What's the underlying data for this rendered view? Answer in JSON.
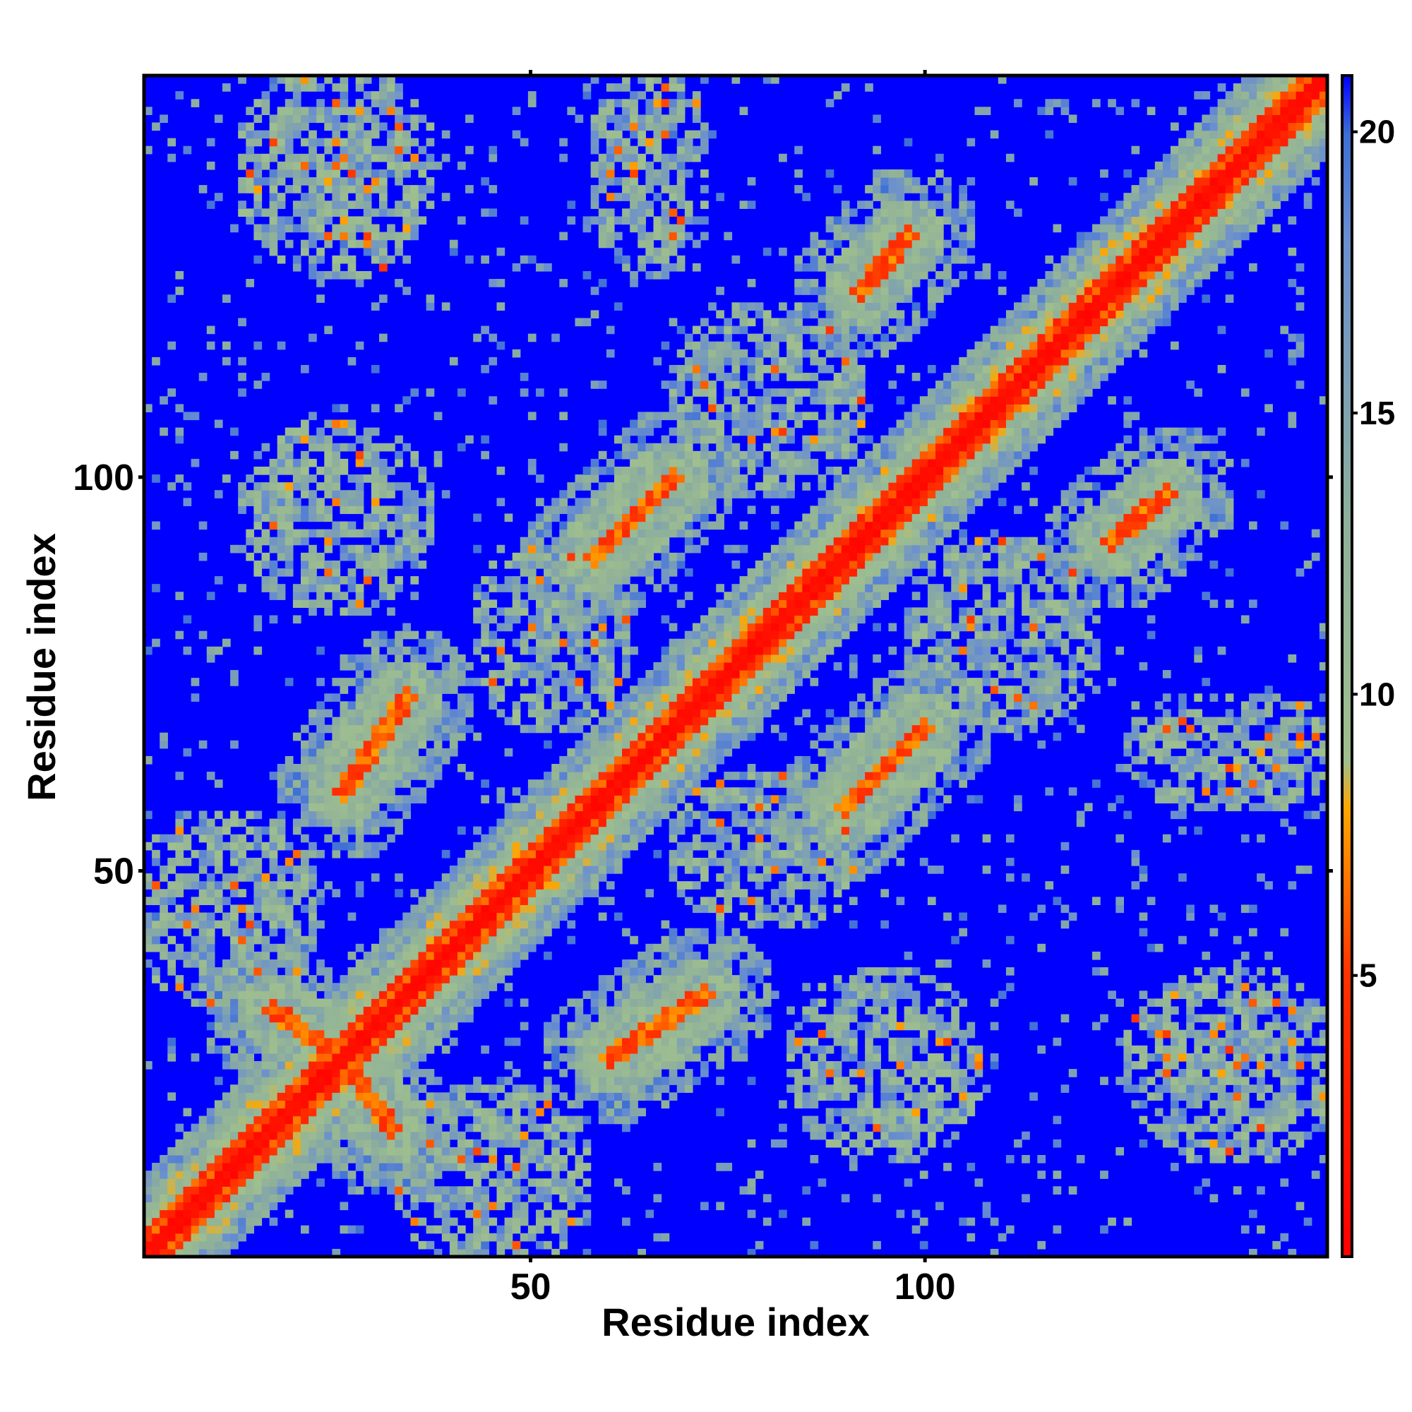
{
  "chart_data": {
    "type": "heatmap",
    "title": "",
    "xlabel": "Residue index",
    "ylabel": "Residue index",
    "n_residues": 151,
    "xlim": [
      1,
      151
    ],
    "ylim": [
      1,
      151
    ],
    "x_ticks": [
      50,
      100
    ],
    "y_ticks": [
      50,
      100
    ],
    "value_range": [
      0,
      21
    ],
    "colorbar": {
      "ticks": [
        5,
        10,
        15,
        20
      ],
      "stops": [
        {
          "value": 0,
          "color": "#ff0000"
        },
        {
          "value": 5,
          "color": "#ff3300"
        },
        {
          "value": 8,
          "color": "#ffa500"
        },
        {
          "value": 9,
          "color": "#9fbf8f"
        },
        {
          "value": 13,
          "color": "#8fb09a"
        },
        {
          "value": 18,
          "color": "#6a8fcf"
        },
        {
          "value": 20,
          "color": "#3d6fd6"
        },
        {
          "value": 21,
          "color": "#0000ff"
        }
      ]
    },
    "colors": {
      "far": "#0000ff",
      "near": "#ff0000",
      "contact": "#ffa500",
      "mid": "#9fbf8f"
    },
    "contact_regions": [
      {
        "type": "diagonal",
        "from": 1,
        "to": 151,
        "width": 4
      },
      {
        "type": "antidiagonal",
        "x": [
          14,
          32
        ],
        "y": [
          43,
          17
        ],
        "strength": 0.9
      },
      {
        "type": "parallel",
        "x": [
          25,
          33
        ],
        "y": [
          64,
          73
        ],
        "strength": 0.85
      },
      {
        "type": "parallel",
        "x": [
          60,
          72
        ],
        "y": [
          26,
          34
        ],
        "strength": 0.85
      },
      {
        "type": "parallel",
        "x": [
          58,
          69
        ],
        "y": [
          90,
          98
        ],
        "strength": 0.85
      },
      {
        "type": "parallel",
        "x": [
          90,
          100
        ],
        "y": [
          58,
          68
        ],
        "strength": 0.85
      },
      {
        "type": "parallel",
        "x": [
          92,
          100
        ],
        "y": [
          124,
          134
        ],
        "strength": 0.8
      },
      {
        "type": "parallel",
        "x": [
          124,
          131
        ],
        "y": [
          92,
          98
        ],
        "strength": 0.8
      },
      {
        "type": "cluster",
        "x": [
          15,
          35
        ],
        "y": [
          128,
          151
        ],
        "strength": 0.6
      },
      {
        "type": "cluster",
        "x": [
          60,
          70
        ],
        "y": [
          128,
          151
        ],
        "strength": 0.5
      },
      {
        "type": "cluster",
        "x": [
          128,
          151
        ],
        "y": [
          15,
          35
        ],
        "strength": 0.6
      },
      {
        "type": "cluster",
        "x": [
          128,
          151
        ],
        "y": [
          60,
          70
        ],
        "strength": 0.5
      },
      {
        "type": "cluster",
        "x": [
          1,
          20
        ],
        "y": [
          35,
          55
        ],
        "strength": 0.55
      },
      {
        "type": "cluster",
        "x": [
          35,
          55
        ],
        "y": [
          1,
          20
        ],
        "strength": 0.55
      },
      {
        "type": "cluster",
        "x": [
          70,
          90
        ],
        "y": [
          100,
          120
        ],
        "strength": 0.45
      },
      {
        "type": "cluster",
        "x": [
          100,
          120
        ],
        "y": [
          70,
          90
        ],
        "strength": 0.45
      },
      {
        "type": "cluster",
        "x": [
          70,
          90
        ],
        "y": [
          45,
          60
        ],
        "strength": 0.4
      },
      {
        "type": "cluster",
        "x": [
          45,
          60
        ],
        "y": [
          70,
          90
        ],
        "strength": 0.4
      },
      {
        "type": "cluster",
        "x": [
          15,
          35
        ],
        "y": [
          85,
          105
        ],
        "strength": 0.45
      },
      {
        "type": "cluster",
        "x": [
          85,
          105
        ],
        "y": [
          15,
          35
        ],
        "strength": 0.45
      }
    ]
  }
}
